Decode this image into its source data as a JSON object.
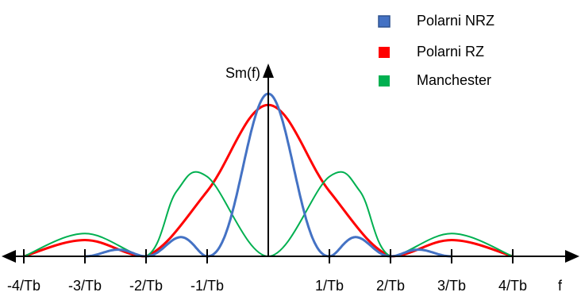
{
  "chart_data": {
    "type": "line",
    "ylabel": "Sm(f)",
    "xlabel": "f",
    "x_tick_labels": [
      "-4/Tb",
      "-3/Tb",
      "-2/Tb",
      "-1/Tb",
      "1/Tb",
      "2/Tb",
      "3/Tb",
      "4/Tb"
    ],
    "x_ticks": [
      -4,
      -3,
      -2,
      -1,
      1,
      2,
      3,
      4
    ],
    "xlim": [
      -4.5,
      5
    ],
    "ylim": [
      0,
      1
    ],
    "grid": false,
    "legend_position": "top-right",
    "series": [
      {
        "name": "Polarni NRZ",
        "color": "#4472c4",
        "x": [
          -3.0,
          -2.5,
          -2.0,
          -1.5,
          -1.0,
          -0.5,
          0.0,
          0.5,
          1.0,
          1.5,
          2.0,
          2.5,
          3.0
        ],
        "y": [
          0.0,
          0.05,
          0.0,
          0.13,
          0.0,
          0.41,
          1.0,
          0.41,
          0.0,
          0.13,
          0.0,
          0.05,
          0.0
        ]
      },
      {
        "name": "Polarni RZ",
        "color": "#ff0000",
        "x": [
          -4.0,
          -3.0,
          -2.0,
          -1.0,
          0.0,
          1.0,
          2.0,
          3.0,
          4.0
        ],
        "y": [
          0.0,
          0.1,
          0.0,
          0.4,
          0.93,
          0.4,
          0.0,
          0.1,
          0.0
        ]
      },
      {
        "name": "Manchester",
        "color": "#00b050",
        "x": [
          -4.0,
          -3.0,
          -2.0,
          -1.5,
          -1.0,
          0.0,
          1.0,
          1.5,
          2.0,
          3.0,
          4.0
        ],
        "y": [
          0.0,
          0.14,
          0.0,
          0.4,
          0.49,
          0.0,
          0.49,
          0.4,
          0.0,
          0.14,
          0.0
        ]
      }
    ]
  }
}
